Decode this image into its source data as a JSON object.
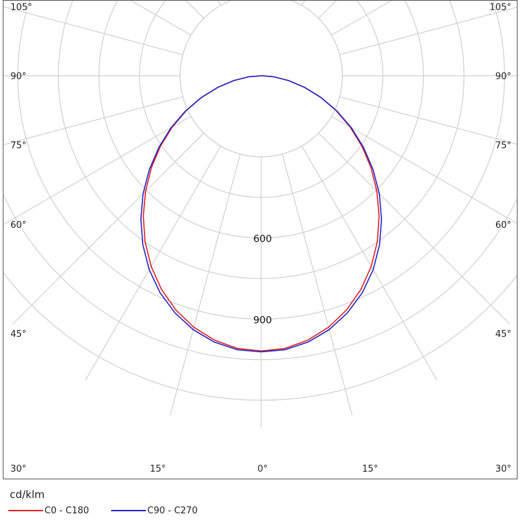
{
  "chart_data": {
    "type": "polar-line",
    "unit": "cd/klm",
    "radial_ticks": [
      {
        "value": 600,
        "label": "600"
      },
      {
        "value": 900,
        "label": "900"
      }
    ],
    "rings": [
      150,
      300,
      450,
      600,
      750,
      900,
      1050,
      1200
    ],
    "angle_tick_labels": [
      {
        "angle": 0,
        "label": "0°"
      },
      {
        "angle": 15,
        "label": "15°"
      },
      {
        "angle": 30,
        "label": "30°"
      },
      {
        "angle": 45,
        "label": "45°"
      },
      {
        "angle": 60,
        "label": "60°"
      },
      {
        "angle": 75,
        "label": "75°"
      },
      {
        "angle": 90,
        "label": "90°"
      },
      {
        "angle": 105,
        "label": "105°"
      }
    ],
    "grid": true,
    "legend_position": "bottom-left",
    "series": [
      {
        "name": "C0 - C180",
        "color": "#e02020",
        "angles": [
          0,
          5,
          10,
          15,
          20,
          25,
          30,
          35,
          40,
          45,
          50,
          55,
          60,
          65,
          70,
          75,
          80,
          85,
          90
        ],
        "values": [
          1018,
          1012,
          993,
          963,
          922,
          872,
          814,
          749,
          678,
          605,
          530,
          455,
          380,
          306,
          234,
          165,
          102,
          47,
          3
        ]
      },
      {
        "name": "C90 - C270",
        "color": "#2323c8",
        "angles": [
          0,
          5,
          10,
          15,
          20,
          25,
          30,
          35,
          40,
          45,
          50,
          55,
          60,
          65,
          70,
          75,
          80,
          85,
          90
        ],
        "values": [
          1021,
          1017,
          1000,
          972,
          933,
          885,
          828,
          763,
          692,
          618,
          540,
          462,
          385,
          309,
          236,
          166,
          103,
          48,
          3
        ]
      }
    ]
  }
}
